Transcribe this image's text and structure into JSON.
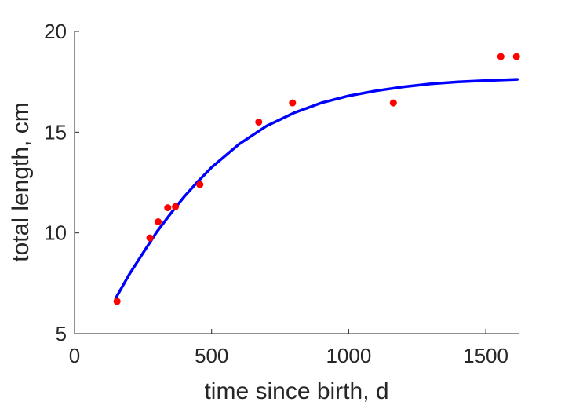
{
  "chart_data": {
    "type": "scatter",
    "xlabel": "time since birth, d",
    "ylabel": "total length, cm",
    "xlim": [
      0,
      1620
    ],
    "ylim": [
      5,
      20
    ],
    "xticks": [
      "0",
      "500",
      "1000",
      "1500"
    ],
    "yticks": [
      "5",
      "10",
      "15",
      "20"
    ],
    "grid": false,
    "series": [
      {
        "kind": "points",
        "color": "#ff0000",
        "x": [
          155,
          275,
          305,
          340,
          368,
          457,
          672,
          795,
          1163,
          1555,
          1612
        ],
        "y": [
          6.6,
          9.75,
          10.55,
          11.25,
          11.3,
          12.4,
          15.5,
          16.45,
          16.45,
          18.75,
          18.75
        ]
      },
      {
        "kind": "fitted-curve",
        "color": "#0000ff",
        "x": [
          150,
          200,
          250,
          300,
          350,
          400,
          450,
          500,
          600,
          700,
          800,
          900,
          1000,
          1100,
          1200,
          1300,
          1400,
          1500,
          1615
        ],
        "y": [
          6.75,
          7.95,
          9.0,
          10.05,
          10.95,
          11.8,
          12.55,
          13.25,
          14.4,
          15.3,
          15.95,
          16.45,
          16.8,
          17.05,
          17.25,
          17.4,
          17.5,
          17.56,
          17.62
        ]
      }
    ]
  }
}
